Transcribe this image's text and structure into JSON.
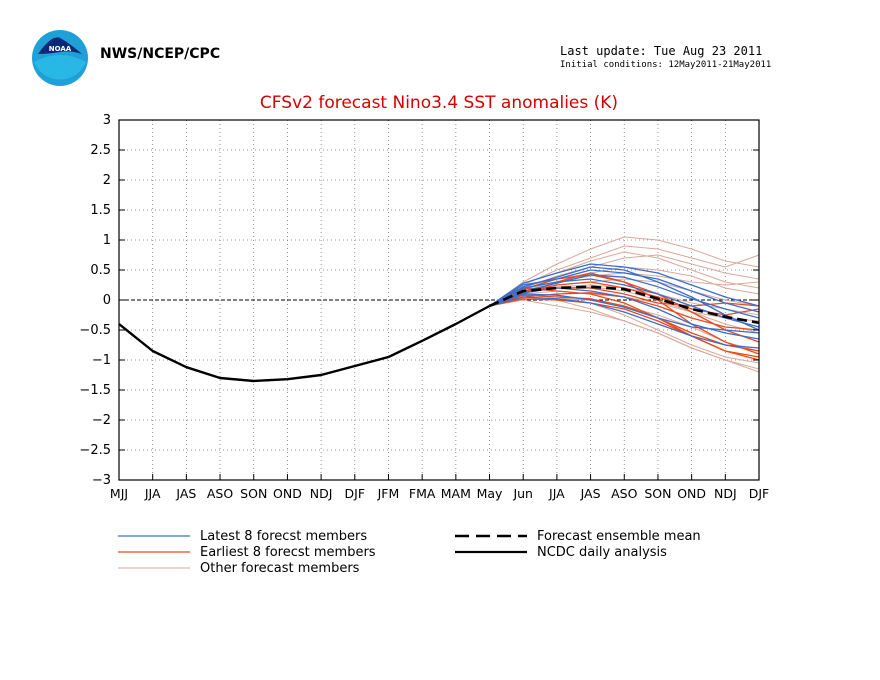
{
  "header": {
    "agency": "NWS/NCEP/CPC",
    "last_update": "Last update: Tue Aug 23 2011",
    "initial_conditions": "Initial conditions: 12May2011-21May2011",
    "logo_text": "NOAA"
  },
  "chart_data": {
    "type": "line",
    "title": "CFSv2 forecast Nino3.4 SST anomalies (K)",
    "xlabel": "",
    "ylabel": "",
    "ylim": [
      -3,
      3
    ],
    "yticks": [
      3,
      2.5,
      2,
      1.5,
      1,
      0.5,
      0,
      -0.5,
      -1,
      -1.5,
      -2,
      -2.5,
      -3
    ],
    "ytick_labels": [
      "3",
      "2.5",
      "2",
      "1.5",
      "1",
      "0.5",
      "0",
      "−0.5",
      "−1",
      "−1.5",
      "−2",
      "−2.5",
      "−3"
    ],
    "categories": [
      "MJJ",
      "JJA",
      "JAS",
      "ASO",
      "SON",
      "OND",
      "NDJ",
      "DJF",
      "JFM",
      "FMA",
      "MAM",
      "May",
      "Jun",
      "JJA",
      "JAS",
      "ASO",
      "SON",
      "OND",
      "NDJ",
      "DJF"
    ],
    "grid": true,
    "colors": {
      "latest": "#3a6fcf",
      "earliest": "#ea4a1c",
      "other": "#d9a99a",
      "mean": "#000000",
      "title": "#d40000"
    },
    "legend": [
      {
        "label": "Latest 8 forecst members",
        "style": "latest"
      },
      {
        "label": "Earliest 8 forecst members",
        "style": "earliest"
      },
      {
        "label": "Other forecast members",
        "style": "other"
      },
      {
        "label": "Forecast ensemble mean",
        "style": "mean-dashed"
      },
      {
        "label": "NCDC daily analysis",
        "style": "analysis"
      }
    ],
    "analysis": {
      "name": "NCDC daily analysis",
      "x": [
        0,
        1,
        2,
        3,
        4,
        5,
        6,
        7,
        8,
        9,
        10,
        11
      ],
      "values": [
        -0.4,
        -0.85,
        -1.12,
        -1.3,
        -1.35,
        -1.32,
        -1.25,
        -1.1,
        -0.95,
        -0.68,
        -0.4,
        -0.1
      ]
    },
    "ensemble_mean": {
      "name": "Forecast ensemble mean",
      "x": [
        11,
        12,
        13,
        14,
        15,
        16,
        17,
        18,
        19
      ],
      "values": [
        -0.1,
        0.15,
        0.2,
        0.22,
        0.18,
        0.02,
        -0.15,
        -0.28,
        -0.38
      ]
    },
    "members": [
      {
        "group": "latest",
        "values": [
          -0.1,
          0.22,
          0.38,
          0.55,
          0.5,
          0.3,
          0.05,
          -0.25,
          -0.5
        ]
      },
      {
        "group": "latest",
        "values": [
          -0.1,
          0.12,
          0.2,
          0.15,
          0.05,
          -0.15,
          -0.4,
          -0.55,
          -0.65
        ]
      },
      {
        "group": "latest",
        "values": [
          -0.1,
          0.28,
          0.45,
          0.6,
          0.55,
          0.45,
          0.25,
          0.05,
          -0.1
        ]
      },
      {
        "group": "latest",
        "values": [
          -0.1,
          0.05,
          0.02,
          -0.05,
          -0.2,
          -0.4,
          -0.6,
          -0.75,
          -0.8
        ]
      },
      {
        "group": "latest",
        "values": [
          -0.1,
          0.2,
          0.3,
          0.35,
          0.25,
          0.1,
          -0.1,
          -0.3,
          -0.45
        ]
      },
      {
        "group": "latest",
        "values": [
          -0.1,
          0.15,
          0.28,
          0.42,
          0.38,
          0.22,
          0.02,
          -0.15,
          -0.3
        ]
      },
      {
        "group": "latest",
        "values": [
          -0.1,
          0.1,
          0.08,
          0.0,
          -0.12,
          -0.3,
          -0.45,
          -0.5,
          -0.55
        ]
      },
      {
        "group": "latest",
        "values": [
          -0.1,
          0.25,
          0.35,
          0.5,
          0.45,
          0.35,
          0.15,
          -0.05,
          -0.2
        ]
      },
      {
        "group": "earliest",
        "values": [
          -0.1,
          0.1,
          0.3,
          0.45,
          0.3,
          0.0,
          -0.4,
          -0.7,
          -0.9
        ]
      },
      {
        "group": "earliest",
        "values": [
          -0.1,
          0.2,
          0.15,
          0.1,
          -0.05,
          -0.3,
          -0.6,
          -0.85,
          -0.95
        ]
      },
      {
        "group": "earliest",
        "values": [
          -0.1,
          0.05,
          0.1,
          0.12,
          0.05,
          -0.1,
          -0.3,
          -0.45,
          -0.5
        ]
      },
      {
        "group": "earliest",
        "values": [
          -0.1,
          0.12,
          0.25,
          0.3,
          0.2,
          0.05,
          -0.15,
          -0.25,
          -0.15
        ]
      },
      {
        "group": "earliest",
        "values": [
          -0.1,
          0.08,
          0.05,
          0.02,
          -0.1,
          -0.3,
          -0.55,
          -0.75,
          -0.85
        ]
      },
      {
        "group": "earliest",
        "values": [
          -0.1,
          0.15,
          0.2,
          0.2,
          0.1,
          -0.05,
          -0.1,
          -0.05,
          -0.1
        ]
      },
      {
        "group": "earliest",
        "values": [
          -0.1,
          0.18,
          0.35,
          0.42,
          0.3,
          0.1,
          -0.2,
          -0.5,
          -0.7
        ]
      },
      {
        "group": "earliest",
        "values": [
          -0.1,
          0.02,
          0.0,
          -0.05,
          -0.15,
          -0.35,
          -0.6,
          -0.85,
          -1.0
        ]
      },
      {
        "group": "other",
        "values": [
          -0.1,
          0.3,
          0.6,
          0.85,
          1.05,
          1.0,
          0.85,
          0.65,
          0.55
        ]
      },
      {
        "group": "other",
        "values": [
          -0.1,
          0.25,
          0.5,
          0.7,
          0.9,
          0.85,
          0.7,
          0.55,
          0.75
        ]
      },
      {
        "group": "other",
        "values": [
          -0.1,
          0.2,
          0.4,
          0.55,
          0.7,
          0.75,
          0.6,
          0.45,
          0.35
        ]
      },
      {
        "group": "other",
        "values": [
          -0.1,
          0.22,
          0.35,
          0.45,
          0.55,
          0.5,
          0.4,
          0.2,
          0.1
        ]
      },
      {
        "group": "other",
        "values": [
          -0.1,
          0.15,
          0.25,
          0.3,
          0.35,
          0.3,
          0.15,
          0.0,
          -0.1
        ]
      },
      {
        "group": "other",
        "values": [
          -0.1,
          0.1,
          0.15,
          0.1,
          0.05,
          -0.05,
          -0.2,
          -0.3,
          -0.35
        ]
      },
      {
        "group": "other",
        "values": [
          -0.1,
          0.05,
          0.0,
          -0.15,
          -0.35,
          -0.55,
          -0.8,
          -1.0,
          -1.15
        ]
      },
      {
        "group": "other",
        "values": [
          -0.1,
          0.08,
          0.05,
          -0.05,
          -0.25,
          -0.5,
          -0.75,
          -0.95,
          -1.05
        ]
      },
      {
        "group": "other",
        "values": [
          -0.1,
          0.0,
          -0.1,
          -0.2,
          -0.35,
          -0.55,
          -0.8,
          -1.0,
          -1.2
        ]
      },
      {
        "group": "other",
        "values": [
          -0.1,
          0.12,
          0.2,
          0.22,
          0.15,
          0.0,
          -0.2,
          -0.4,
          -0.55
        ]
      },
      {
        "group": "other",
        "values": [
          -0.1,
          0.18,
          0.3,
          0.4,
          0.45,
          0.4,
          0.3,
          0.25,
          0.3
        ]
      },
      {
        "group": "other",
        "values": [
          -0.1,
          0.28,
          0.45,
          0.65,
          0.8,
          0.7,
          0.5,
          0.3,
          0.2
        ]
      },
      {
        "group": "other",
        "values": [
          -0.1,
          0.05,
          0.02,
          0.0,
          -0.1,
          -0.25,
          -0.45,
          -0.7,
          -0.85
        ]
      },
      {
        "group": "other",
        "values": [
          -0.1,
          0.15,
          0.22,
          0.25,
          0.2,
          0.1,
          -0.05,
          -0.15,
          -0.25
        ]
      }
    ]
  }
}
